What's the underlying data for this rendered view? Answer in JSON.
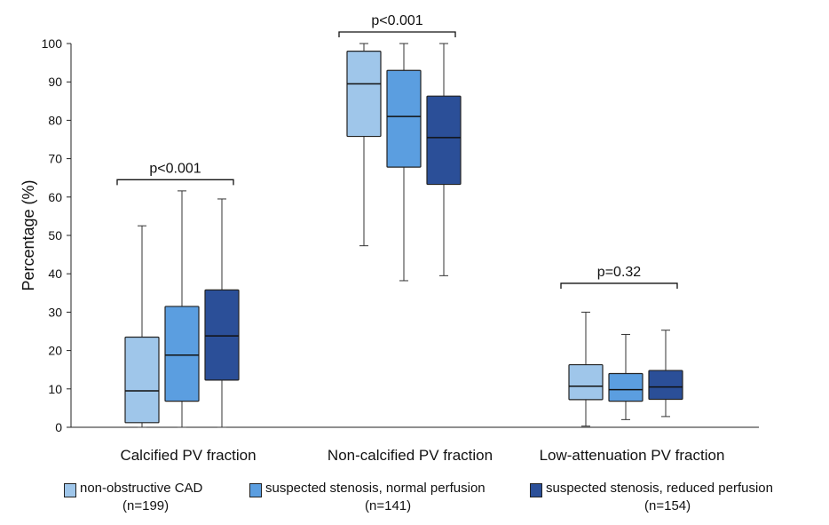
{
  "chart_data": {
    "type": "boxplot",
    "ylabel": "Percentage (%)",
    "ylim": [
      0,
      100
    ],
    "yticks": [
      0,
      10,
      20,
      30,
      40,
      50,
      60,
      70,
      80,
      90,
      100
    ],
    "categories": [
      "Calcified PV fraction",
      "Non-calcified PV fraction",
      "Low-attenuation PV fraction"
    ],
    "annotations": [
      "p<0.001",
      "p<0.001",
      "p=0.32"
    ],
    "series": [
      {
        "name": "non-obstructive CAD",
        "n": "(n=199)",
        "color": "#9fc6ea",
        "boxes": [
          {
            "min": 0,
            "q1": 1.2,
            "median": 9.5,
            "q3": 23.5,
            "max": 52.5
          },
          {
            "min": 47.3,
            "q1": 75.8,
            "median": 89.5,
            "q3": 98,
            "max": 100
          },
          {
            "min": 0.3,
            "q1": 7.2,
            "median": 10.7,
            "q3": 16.3,
            "max": 30
          }
        ]
      },
      {
        "name": "suspected stenosis, normal perfusion",
        "n": "(n=141)",
        "color": "#5b9ee0",
        "boxes": [
          {
            "min": 0,
            "q1": 6.8,
            "median": 18.8,
            "q3": 31.5,
            "max": 61.6
          },
          {
            "min": 38.2,
            "q1": 67.8,
            "median": 81,
            "q3": 93,
            "max": 100
          },
          {
            "min": 2,
            "q1": 6.8,
            "median": 9.8,
            "q3": 14,
            "max": 24.2
          }
        ]
      },
      {
        "name": "suspected stenosis, reduced perfusion",
        "n": "(n=154)",
        "color": "#2b4f98",
        "boxes": [
          {
            "min": 0,
            "q1": 12.3,
            "median": 23.8,
            "q3": 35.8,
            "max": 59.5
          },
          {
            "min": 39.5,
            "q1": 63.3,
            "median": 75.5,
            "q3": 86.3,
            "max": 100
          },
          {
            "min": 2.8,
            "q1": 7.3,
            "median": 10.5,
            "q3": 14.8,
            "max": 25.3
          }
        ]
      }
    ]
  }
}
